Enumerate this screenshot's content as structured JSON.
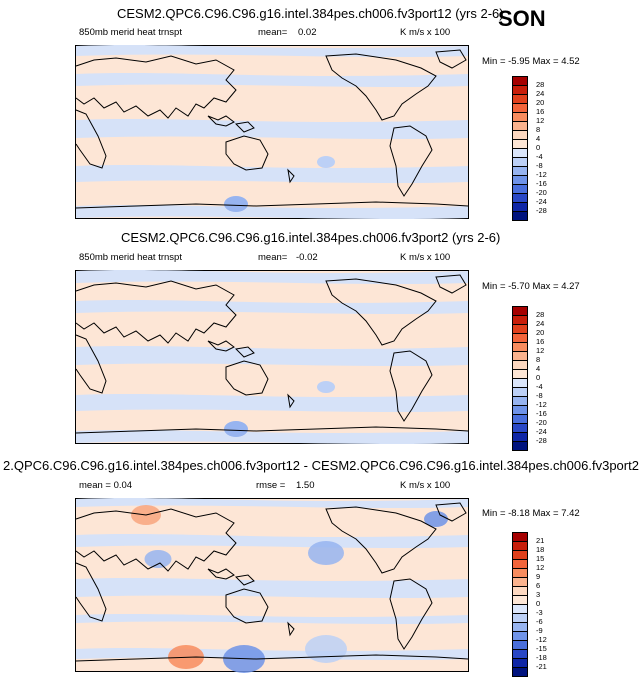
{
  "season": "SON",
  "panels": [
    {
      "title": "CESM2.QPC6.C96.C96.g16.intel.384pes.ch006.fv3port12 (yrs 2-6)",
      "left_label": "850mb merid heat trnspt",
      "mean_label": "mean=",
      "mean_value": "0.02",
      "units": "K m/s x 100",
      "min_label": "Min =",
      "min_value": "-5.95",
      "max_label": "Max =",
      "max_value": "4.52",
      "colorbar_labels": [
        "28",
        "24",
        "20",
        "16",
        "12",
        "8",
        "4",
        "0",
        "-4",
        "-8",
        "-12",
        "-16",
        "-20",
        "-24",
        "-28"
      ]
    },
    {
      "title": "CESM2.QPC6.C96.C96.g16.intel.384pes.ch006.fv3port2 (yrs 2-6)",
      "left_label": "850mb merid heat trnspt",
      "mean_label": "mean=",
      "mean_value": "-0.02",
      "units": "K m/s x 100",
      "min_label": "Min =",
      "min_value": "-5.70",
      "max_label": "Max =",
      "max_value": "4.27",
      "colorbar_labels": [
        "28",
        "24",
        "20",
        "16",
        "12",
        "8",
        "4",
        "0",
        "-4",
        "-8",
        "-12",
        "-16",
        "-20",
        "-24",
        "-28"
      ]
    },
    {
      "title": "2.QPC6.C96.C96.g16.intel.384pes.ch006.fv3port12 - CESM2.QPC6.C96.C96.g16.intel.384pes.ch006.fv3port2",
      "left_label": "mean =  0.04",
      "mean_label": "rmse =",
      "mean_value": "1.50",
      "units": "K m/s x 100",
      "min_label": "Min =",
      "min_value": "-8.18",
      "max_label": "Max =",
      "max_value": "7.42",
      "colorbar_labels": [
        "21",
        "18",
        "15",
        "12",
        "9",
        "6",
        "3",
        "0",
        "-3",
        "-6",
        "-9",
        "-12",
        "-15",
        "-18",
        "-21"
      ]
    }
  ],
  "colors": {
    "scale": [
      "#a50000",
      "#c81e0a",
      "#e0401c",
      "#f2643a",
      "#f88c5e",
      "#fbb38e",
      "#fdd8c0",
      "#fde6d6",
      "#dbe6fb",
      "#bcd0f6",
      "#97b4f0",
      "#6f93e8",
      "#4a6fdc",
      "#2a48c6",
      "#0f26a6",
      "#00137e"
    ],
    "positive": "#fde6d6",
    "negative": "#d6e2f8",
    "coast": "#000000"
  }
}
